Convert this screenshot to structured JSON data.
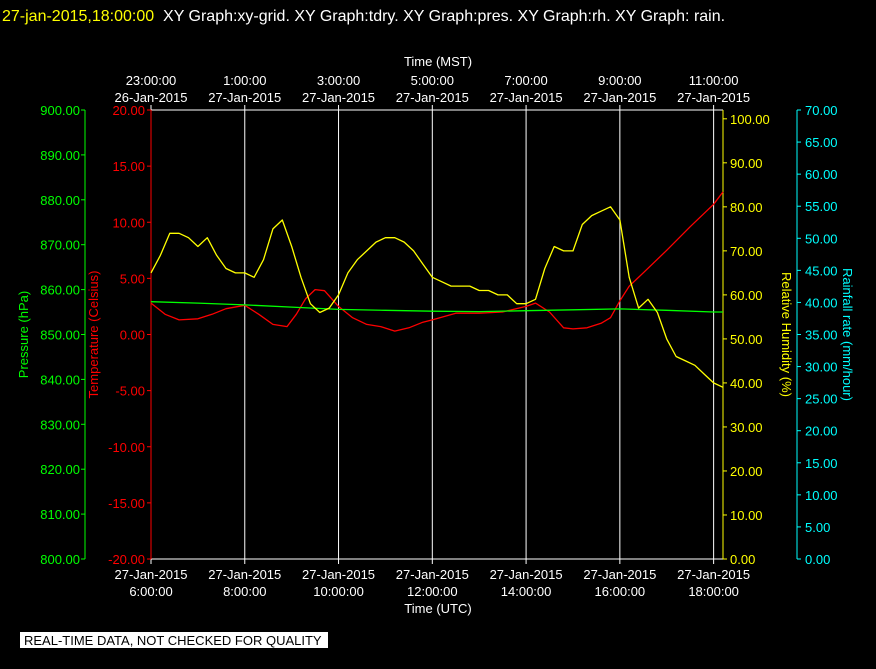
{
  "header": {
    "timestamp": "27-jan-2015,18:00:00",
    "title": "XY Graph:xy-grid.  XY Graph:tdry.  XY Graph:pres.  XY Graph:rh.  XY Graph: rain."
  },
  "footer": {
    "quality": "REAL-TIME DATA, NOT CHECKED FOR QUALITY"
  },
  "colors": {
    "background": "#000000",
    "grid": "#ffffff",
    "temperature": "#ff0000",
    "pressure": "#00ff00",
    "humidity": "#ffff00",
    "rain": "#00ffff"
  },
  "chart_data": {
    "type": "line",
    "top_axis": {
      "label": "Time (MST)",
      "ticks": [
        {
          "time": "23:00:00",
          "date": "26-Jan-2015"
        },
        {
          "time": "1:00:00",
          "date": "27-Jan-2015"
        },
        {
          "time": "3:00:00",
          "date": "27-Jan-2015"
        },
        {
          "time": "5:00:00",
          "date": "27-Jan-2015"
        },
        {
          "time": "7:00:00",
          "date": "27-Jan-2015"
        },
        {
          "time": "9:00:00",
          "date": "27-Jan-2015"
        },
        {
          "time": "11:00:00",
          "date": "27-Jan-2015"
        }
      ]
    },
    "bottom_axis": {
      "label": "Time (UTC)",
      "xlim": [
        6,
        18.2
      ],
      "ticks": [
        {
          "date": "27-Jan-2015",
          "time": "6:00:00",
          "hour": 6
        },
        {
          "date": "27-Jan-2015",
          "time": "8:00:00",
          "hour": 8
        },
        {
          "date": "27-Jan-2015",
          "time": "10:00:00",
          "hour": 10
        },
        {
          "date": "27-Jan-2015",
          "time": "12:00:00",
          "hour": 12
        },
        {
          "date": "27-Jan-2015",
          "time": "14:00:00",
          "hour": 14
        },
        {
          "date": "27-Jan-2015",
          "time": "16:00:00",
          "hour": 16
        },
        {
          "date": "27-Jan-2015",
          "time": "18:00:00",
          "hour": 18
        }
      ]
    },
    "grid": true,
    "axes": {
      "pressure": {
        "label": "Pressure (hPa)",
        "ylim": [
          800,
          900
        ],
        "ticks": [
          "900.00",
          "890.00",
          "880.00",
          "870.00",
          "860.00",
          "850.00",
          "840.00",
          "830.00",
          "820.00",
          "810.00",
          "800.00"
        ]
      },
      "temperature": {
        "label": "Temperature (Celsius)",
        "ylim": [
          -20,
          20
        ],
        "ticks": [
          "20.00",
          "15.00",
          "10.00",
          "5.00",
          "0.00",
          "-5.00",
          "-10.00",
          "-15.00",
          "-20.00"
        ]
      },
      "humidity": {
        "label": "Relative Humidity (%)",
        "ylim": [
          0,
          102
        ],
        "ticks": [
          "100.00",
          "90.00",
          "80.00",
          "70.00",
          "60.00",
          "50.00",
          "40.00",
          "30.00",
          "20.00",
          "10.00",
          "0.00"
        ]
      },
      "rain": {
        "label": "Rainfall rate (mm/hour)",
        "ylim": [
          0,
          70
        ],
        "ticks": [
          "70.00",
          "65.00",
          "60.00",
          "55.00",
          "50.00",
          "45.00",
          "40.00",
          "35.00",
          "30.00",
          "25.00",
          "20.00",
          "15.00",
          "10.00",
          "5.00",
          "0.00"
        ]
      }
    },
    "series": [
      {
        "key": "temperature",
        "x": [
          6,
          6.3,
          6.6,
          7,
          7.3,
          7.6,
          8,
          8.3,
          8.6,
          8.9,
          9.1,
          9.3,
          9.5,
          9.7,
          10,
          10.3,
          10.6,
          10.9,
          11.2,
          11.5,
          11.8,
          12,
          12.5,
          13,
          13.5,
          14,
          14.2,
          14.5,
          14.8,
          15,
          15.3,
          15.6,
          15.8,
          16,
          16.2,
          16.5,
          17,
          17.5,
          18,
          18.2
        ],
        "y": [
          2.8,
          1.8,
          1.3,
          1.4,
          1.8,
          2.3,
          2.6,
          1.8,
          0.9,
          0.7,
          1.8,
          3.2,
          4,
          3.9,
          2.5,
          1.5,
          0.9,
          0.7,
          0.3,
          0.6,
          1.1,
          1.3,
          1.9,
          1.9,
          2,
          2.5,
          2.8,
          2,
          0.6,
          0.5,
          0.6,
          1,
          1.5,
          3,
          4.3,
          5.5,
          7.5,
          9.6,
          11.6,
          12.7
        ]
      },
      {
        "key": "pressure",
        "x": [
          6,
          7,
          8,
          9,
          10,
          11,
          12,
          13,
          14,
          15,
          16,
          17,
          18,
          18.2
        ],
        "y": [
          857.3,
          857,
          856.6,
          856.1,
          855.6,
          855.4,
          855.2,
          855.1,
          855.3,
          855.5,
          855.7,
          855.4,
          855,
          855
        ]
      },
      {
        "key": "humidity",
        "x": [
          6,
          6.2,
          6.4,
          6.6,
          6.8,
          7,
          7.2,
          7.4,
          7.6,
          7.8,
          8,
          8.2,
          8.4,
          8.6,
          8.8,
          9,
          9.2,
          9.4,
          9.6,
          9.8,
          10,
          10.2,
          10.4,
          10.6,
          10.8,
          11,
          11.2,
          11.4,
          11.6,
          11.8,
          12,
          12.2,
          12.4,
          12.6,
          12.8,
          13,
          13.2,
          13.4,
          13.6,
          13.8,
          14,
          14.2,
          14.4,
          14.6,
          14.8,
          15,
          15.2,
          15.4,
          15.6,
          15.8,
          16,
          16.2,
          16.4,
          16.6,
          16.8,
          17,
          17.2,
          17.4,
          17.6,
          17.8,
          18,
          18.2
        ],
        "y": [
          65,
          69,
          74,
          74,
          73,
          71,
          73,
          69,
          66,
          65,
          65,
          64,
          68,
          75,
          77,
          71,
          64,
          58,
          56,
          57,
          60,
          65,
          68,
          70,
          72,
          73,
          73,
          72,
          70,
          67,
          64,
          63,
          62,
          62,
          62,
          61,
          61,
          60,
          60,
          58,
          58,
          59,
          66,
          71,
          70,
          70,
          76,
          78,
          79,
          80,
          77,
          64,
          57,
          59,
          56,
          50,
          46,
          45,
          44,
          42,
          40,
          39
        ]
      }
    ]
  }
}
